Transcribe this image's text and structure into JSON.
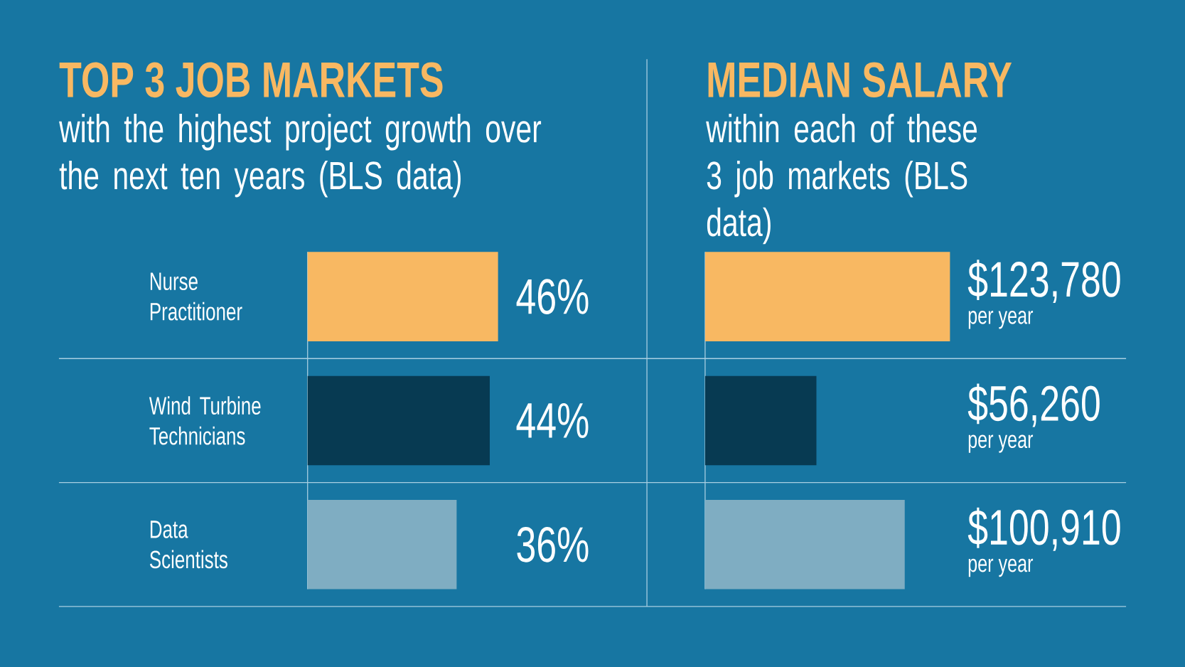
{
  "chart_data": [
    {
      "type": "bar",
      "orientation": "horizontal",
      "title": "TOP 3 JOB MARKETS",
      "subtitle": "with the highest project growth over the next ten years (BLS data)",
      "categories": [
        "Nurse Practitioner",
        "Wind Turbine Technicians",
        "Data Scientists"
      ],
      "values": [
        46,
        44,
        36
      ],
      "colors": [
        "#f8b862",
        "#073a52",
        "#7fadc2"
      ],
      "value_labels": [
        "46%",
        "44%",
        "36%"
      ]
    },
    {
      "type": "bar",
      "orientation": "horizontal",
      "title": "MEDIAN SALARY",
      "subtitle": "within each of these 3 job markets (BLS data)",
      "categories": [
        null,
        null,
        null
      ],
      "values": [
        123780,
        56260,
        100910
      ],
      "colors": [
        "#f8b862",
        "#073a52",
        "#7fadc2"
      ],
      "value_labels": [
        "$123,780",
        "$56,260",
        "$100,910"
      ],
      "annotations": [
        "per year",
        "per year",
        "per year"
      ]
    }
  ]
}
